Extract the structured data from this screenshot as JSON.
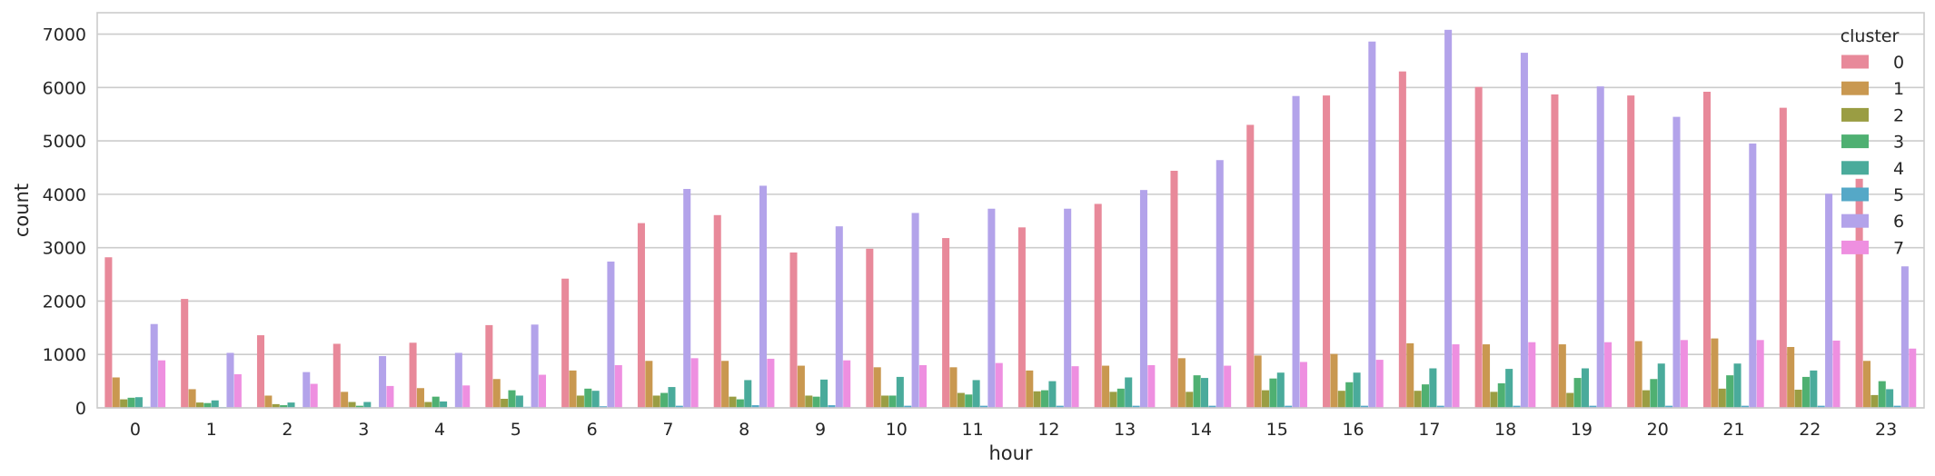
{
  "chart_data": {
    "type": "bar",
    "xlabel": "hour",
    "ylabel": "count",
    "ylim": [
      0,
      7400
    ],
    "yticks": [
      0,
      1000,
      2000,
      3000,
      4000,
      5000,
      6000,
      7000
    ],
    "grid": true,
    "legend": {
      "title": "cluster",
      "placement": "top-right"
    },
    "categories": [
      "0",
      "1",
      "2",
      "3",
      "4",
      "5",
      "6",
      "7",
      "8",
      "9",
      "10",
      "11",
      "12",
      "13",
      "14",
      "15",
      "16",
      "17",
      "18",
      "19",
      "20",
      "21",
      "22",
      "23"
    ],
    "series": [
      {
        "name": "0",
        "color": "#e8899a",
        "values": [
          2820,
          2040,
          1360,
          1200,
          1220,
          1550,
          2420,
          3460,
          3610,
          2910,
          2980,
          3180,
          3380,
          3820,
          4440,
          5300,
          5850,
          6300,
          6010,
          5870,
          5850,
          5920,
          5620,
          4290
        ]
      },
      {
        "name": "1",
        "color": "#c99850",
        "values": [
          570,
          350,
          230,
          300,
          370,
          540,
          700,
          880,
          880,
          790,
          760,
          760,
          700,
          790,
          930,
          980,
          1010,
          1210,
          1190,
          1190,
          1250,
          1300,
          1140,
          880
        ]
      },
      {
        "name": "2",
        "color": "#9a9d43",
        "values": [
          160,
          100,
          70,
          110,
          110,
          170,
          230,
          230,
          210,
          230,
          230,
          280,
          310,
          300,
          300,
          330,
          320,
          320,
          300,
          280,
          330,
          360,
          340,
          240
        ]
      },
      {
        "name": "3",
        "color": "#4fb072",
        "values": [
          190,
          90,
          50,
          40,
          210,
          330,
          360,
          280,
          160,
          210,
          230,
          250,
          330,
          360,
          610,
          550,
          480,
          440,
          460,
          560,
          540,
          610,
          580,
          500
        ]
      },
      {
        "name": "4",
        "color": "#4aab9b",
        "values": [
          200,
          140,
          100,
          110,
          120,
          230,
          320,
          390,
          520,
          530,
          580,
          520,
          500,
          570,
          560,
          660,
          660,
          740,
          730,
          740,
          830,
          830,
          700,
          350
        ]
      },
      {
        "name": "5",
        "color": "#55a8c7",
        "values": [
          20,
          15,
          10,
          10,
          10,
          20,
          30,
          40,
          50,
          50,
          40,
          40,
          40,
          40,
          40,
          40,
          40,
          40,
          40,
          40,
          40,
          40,
          40,
          40
        ]
      },
      {
        "name": "6",
        "color": "#b3a3ea",
        "values": [
          1570,
          1030,
          670,
          970,
          1030,
          1560,
          2740,
          4100,
          4160,
          3400,
          3650,
          3730,
          3730,
          4080,
          4640,
          5840,
          6860,
          7080,
          6650,
          6020,
          5450,
          4950,
          4010,
          2650
        ]
      },
      {
        "name": "7",
        "color": "#ee8fe0",
        "values": [
          890,
          630,
          450,
          410,
          420,
          620,
          800,
          930,
          920,
          890,
          800,
          840,
          780,
          800,
          790,
          860,
          900,
          1190,
          1230,
          1230,
          1270,
          1270,
          1260,
          1110
        ]
      }
    ]
  }
}
